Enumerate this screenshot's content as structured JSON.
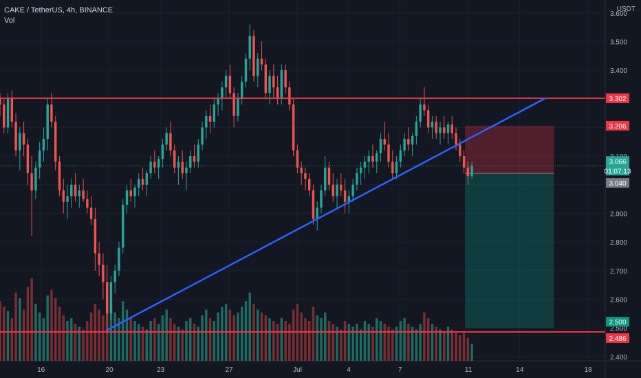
{
  "legend": {
    "symbol_line": "CAKE / TetherUS, 4h, BINANCE",
    "volume_label": "Vol"
  },
  "price_scale": {
    "unit": "USDT"
  },
  "colors": {
    "background": "#131722",
    "up": "#26a69a",
    "down": "#ef5350",
    "up_volume": "#1e6b62",
    "down_volume": "#7a2e33",
    "horizontal_line": "#f23645",
    "trend_line": "#2962ff",
    "tick_text": "#b2b5be"
  },
  "chart_data": {
    "type": "candlestick",
    "title": "CAKE / TetherUS, 4h, BINANCE",
    "y_axis": {
      "unit": "USDT",
      "ticks": [
        "3.600",
        "3.500",
        "3.400",
        "3.300",
        "3.200",
        "3.100",
        "3.000",
        "2.900",
        "2.800",
        "2.700",
        "2.600",
        "2.500",
        "2.400"
      ],
      "range": [
        2.385,
        3.645
      ]
    },
    "x_axis": {
      "ticks": [
        {
          "label": "16",
          "day": 16
        },
        {
          "label": "20",
          "day": 20
        },
        {
          "label": "23",
          "day": 23
        },
        {
          "label": "27",
          "day": 27
        },
        {
          "label": "Jul",
          "day": 31
        },
        {
          "label": "4",
          "day": 34
        },
        {
          "label": "7",
          "day": 37
        },
        {
          "label": "11",
          "day": 41
        },
        {
          "label": "14",
          "day": 44
        },
        {
          "label": "18",
          "day": 48
        }
      ],
      "range_days": [
        13.6,
        49.0
      ]
    },
    "price_labels": [
      {
        "value": "3.302",
        "style": "line"
      },
      {
        "value": "3.206",
        "style": "line"
      },
      {
        "value": "3.066",
        "style": "current"
      },
      {
        "value": "01:07:13",
        "style": "countdown"
      },
      {
        "value": "3.040",
        "style": "grey"
      },
      {
        "value": "2.500",
        "style": "target"
      },
      {
        "value": "2.486",
        "style": "line"
      }
    ],
    "horizontal_lines": [
      3.302,
      2.486
    ],
    "trend_line": {
      "from": {
        "day": 19.8,
        "price": 2.49
      },
      "to": {
        "day": 45.5,
        "price": 3.302
      }
    },
    "position": {
      "entry": 3.04,
      "stop": 3.206,
      "target": 2.5,
      "start_day": 40.8,
      "end_day": 46.0
    },
    "candles_ohlc": [
      [
        3.3,
        3.32,
        3.24,
        3.28
      ],
      [
        3.28,
        3.3,
        3.18,
        3.2
      ],
      [
        3.2,
        3.32,
        3.18,
        3.3
      ],
      [
        3.3,
        3.33,
        3.2,
        3.22
      ],
      [
        3.22,
        3.25,
        3.1,
        3.12
      ],
      [
        3.12,
        3.2,
        3.05,
        3.18
      ],
      [
        3.18,
        3.22,
        3.1,
        3.14
      ],
      [
        3.14,
        3.16,
        3.0,
        3.04
      ],
      [
        3.04,
        3.1,
        2.82,
        2.98
      ],
      [
        2.98,
        3.08,
        2.95,
        3.06
      ],
      [
        3.06,
        3.15,
        3.02,
        3.12
      ],
      [
        3.12,
        3.2,
        3.08,
        3.16
      ],
      [
        3.16,
        3.3,
        3.12,
        3.28
      ],
      [
        3.28,
        3.32,
        3.2,
        3.22
      ],
      [
        3.22,
        3.24,
        3.05,
        3.08
      ],
      [
        3.08,
        3.1,
        2.96,
        2.98
      ],
      [
        2.98,
        3.02,
        2.9,
        2.94
      ],
      [
        2.94,
        3.0,
        2.88,
        2.96
      ],
      [
        2.96,
        3.02,
        2.92,
        3.0
      ],
      [
        3.0,
        3.04,
        2.94,
        2.96
      ],
      [
        2.96,
        3.0,
        2.92,
        2.98
      ],
      [
        2.98,
        3.02,
        2.94,
        2.95
      ],
      [
        2.95,
        2.98,
        2.9,
        2.92
      ],
      [
        2.92,
        2.96,
        2.86,
        2.88
      ],
      [
        2.88,
        2.92,
        2.7,
        2.76
      ],
      [
        2.76,
        2.8,
        2.68,
        2.72
      ],
      [
        2.72,
        2.76,
        2.6,
        2.66
      ],
      [
        2.66,
        2.72,
        2.48,
        2.55
      ],
      [
        2.55,
        2.68,
        2.53,
        2.66
      ],
      [
        2.66,
        2.72,
        2.62,
        2.7
      ],
      [
        2.7,
        2.8,
        2.68,
        2.78
      ],
      [
        2.78,
        2.95,
        2.76,
        2.93
      ],
      [
        2.93,
        3.0,
        2.9,
        2.98
      ],
      [
        2.98,
        3.02,
        2.94,
        2.96
      ],
      [
        2.96,
        3.0,
        2.92,
        2.99
      ],
      [
        2.99,
        3.04,
        2.96,
        3.02
      ],
      [
        3.02,
        3.06,
        2.98,
        3.0
      ],
      [
        3.0,
        3.05,
        2.96,
        3.04
      ],
      [
        3.04,
        3.1,
        3.02,
        3.08
      ],
      [
        3.08,
        3.12,
        3.04,
        3.06
      ],
      [
        3.06,
        3.1,
        3.02,
        3.09
      ],
      [
        3.09,
        3.16,
        3.06,
        3.14
      ],
      [
        3.14,
        3.2,
        3.12,
        3.18
      ],
      [
        3.18,
        3.22,
        3.1,
        3.12
      ],
      [
        3.12,
        3.14,
        3.04,
        3.06
      ],
      [
        3.06,
        3.1,
        3.0,
        3.08
      ],
      [
        3.08,
        3.12,
        3.02,
        3.04
      ],
      [
        3.04,
        3.08,
        2.98,
        3.06
      ],
      [
        3.06,
        3.12,
        3.04,
        3.1
      ],
      [
        3.1,
        3.14,
        3.06,
        3.08
      ],
      [
        3.08,
        3.16,
        3.06,
        3.14
      ],
      [
        3.14,
        3.22,
        3.12,
        3.2
      ],
      [
        3.2,
        3.26,
        3.16,
        3.24
      ],
      [
        3.24,
        3.28,
        3.18,
        3.22
      ],
      [
        3.22,
        3.3,
        3.2,
        3.28
      ],
      [
        3.28,
        3.32,
        3.24,
        3.3
      ],
      [
        3.3,
        3.36,
        3.26,
        3.34
      ],
      [
        3.34,
        3.4,
        3.3,
        3.38
      ],
      [
        3.38,
        3.42,
        3.3,
        3.32
      ],
      [
        3.32,
        3.34,
        3.2,
        3.24
      ],
      [
        3.24,
        3.32,
        3.22,
        3.3
      ],
      [
        3.3,
        3.38,
        3.28,
        3.36
      ],
      [
        3.36,
        3.46,
        3.34,
        3.44
      ],
      [
        3.44,
        3.56,
        3.4,
        3.52
      ],
      [
        3.52,
        3.54,
        3.36,
        3.38
      ],
      [
        3.38,
        3.46,
        3.34,
        3.44
      ],
      [
        3.44,
        3.5,
        3.4,
        3.42
      ],
      [
        3.42,
        3.44,
        3.3,
        3.32
      ],
      [
        3.32,
        3.4,
        3.28,
        3.38
      ],
      [
        3.38,
        3.42,
        3.3,
        3.34
      ],
      [
        3.34,
        3.38,
        3.28,
        3.3
      ],
      [
        3.3,
        3.42,
        3.28,
        3.4
      ],
      [
        3.4,
        3.42,
        3.32,
        3.34
      ],
      [
        3.34,
        3.36,
        3.26,
        3.28
      ],
      [
        3.28,
        3.3,
        3.1,
        3.12
      ],
      [
        3.12,
        3.14,
        3.04,
        3.06
      ],
      [
        3.06,
        3.08,
        3.0,
        3.04
      ],
      [
        3.04,
        3.06,
        2.98,
        3.02
      ],
      [
        3.02,
        3.04,
        2.96,
        2.98
      ],
      [
        2.98,
        3.0,
        2.86,
        2.88
      ],
      [
        2.88,
        2.94,
        2.84,
        2.92
      ],
      [
        2.92,
        3.0,
        2.9,
        2.98
      ],
      [
        2.98,
        3.1,
        2.96,
        3.06
      ],
      [
        3.06,
        3.08,
        2.98,
        3.0
      ],
      [
        3.0,
        3.04,
        2.94,
        2.96
      ],
      [
        2.96,
        3.02,
        2.92,
        3.0
      ],
      [
        3.0,
        3.04,
        2.96,
        2.98
      ],
      [
        2.98,
        3.02,
        2.9,
        2.94
      ],
      [
        2.94,
        2.98,
        2.9,
        2.96
      ],
      [
        2.96,
        3.02,
        2.94,
        3.0
      ],
      [
        3.0,
        3.06,
        2.98,
        3.04
      ],
      [
        3.04,
        3.08,
        3.0,
        3.06
      ],
      [
        3.06,
        3.1,
        3.02,
        3.08
      ],
      [
        3.08,
        3.12,
        3.04,
        3.1
      ],
      [
        3.1,
        3.14,
        3.06,
        3.08
      ],
      [
        3.08,
        3.12,
        3.04,
        3.11
      ],
      [
        3.11,
        3.18,
        3.08,
        3.16
      ],
      [
        3.16,
        3.22,
        3.12,
        3.14
      ],
      [
        3.14,
        3.18,
        3.06,
        3.08
      ],
      [
        3.08,
        3.12,
        3.02,
        3.04
      ],
      [
        3.04,
        3.1,
        3.02,
        3.08
      ],
      [
        3.08,
        3.14,
        3.06,
        3.12
      ],
      [
        3.12,
        3.18,
        3.1,
        3.16
      ],
      [
        3.16,
        3.2,
        3.12,
        3.14
      ],
      [
        3.14,
        3.18,
        3.1,
        3.17
      ],
      [
        3.17,
        3.24,
        3.14,
        3.22
      ],
      [
        3.22,
        3.3,
        3.2,
        3.28
      ],
      [
        3.28,
        3.34,
        3.24,
        3.26
      ],
      [
        3.26,
        3.28,
        3.18,
        3.2
      ],
      [
        3.2,
        3.24,
        3.16,
        3.22
      ],
      [
        3.22,
        3.24,
        3.16,
        3.18
      ],
      [
        3.18,
        3.22,
        3.14,
        3.2
      ],
      [
        3.2,
        3.24,
        3.16,
        3.18
      ],
      [
        3.18,
        3.22,
        3.14,
        3.21
      ],
      [
        3.21,
        3.24,
        3.16,
        3.18
      ],
      [
        3.18,
        3.2,
        3.12,
        3.14
      ],
      [
        3.14,
        3.16,
        3.08,
        3.1
      ],
      [
        3.1,
        3.12,
        3.04,
        3.06
      ],
      [
        3.06,
        3.08,
        3.0,
        3.03
      ],
      [
        3.03,
        3.08,
        3.02,
        3.066
      ]
    ],
    "volumes": [
      42,
      38,
      35,
      30,
      48,
      44,
      36,
      52,
      58,
      40,
      34,
      30,
      46,
      50,
      44,
      38,
      32,
      28,
      30,
      26,
      24,
      22,
      28,
      34,
      40,
      36,
      32,
      46,
      38,
      34,
      30,
      42,
      36,
      30,
      28,
      26,
      24,
      22,
      28,
      30,
      26,
      32,
      36,
      30,
      26,
      24,
      22,
      28,
      30,
      26,
      24,
      32,
      36,
      30,
      28,
      34,
      38,
      40,
      36,
      32,
      34,
      38,
      42,
      48,
      40,
      36,
      34,
      32,
      30,
      28,
      26,
      30,
      28,
      26,
      36,
      40,
      34,
      30,
      28,
      38,
      32,
      30,
      34,
      28,
      26,
      24,
      22,
      28,
      26,
      24,
      26,
      22,
      28,
      26,
      24,
      30,
      28,
      26,
      24,
      22,
      24,
      28,
      30,
      26,
      24,
      22,
      26,
      34,
      30,
      26,
      24,
      22,
      20,
      24,
      22,
      20,
      18,
      20,
      16,
      12
    ]
  }
}
